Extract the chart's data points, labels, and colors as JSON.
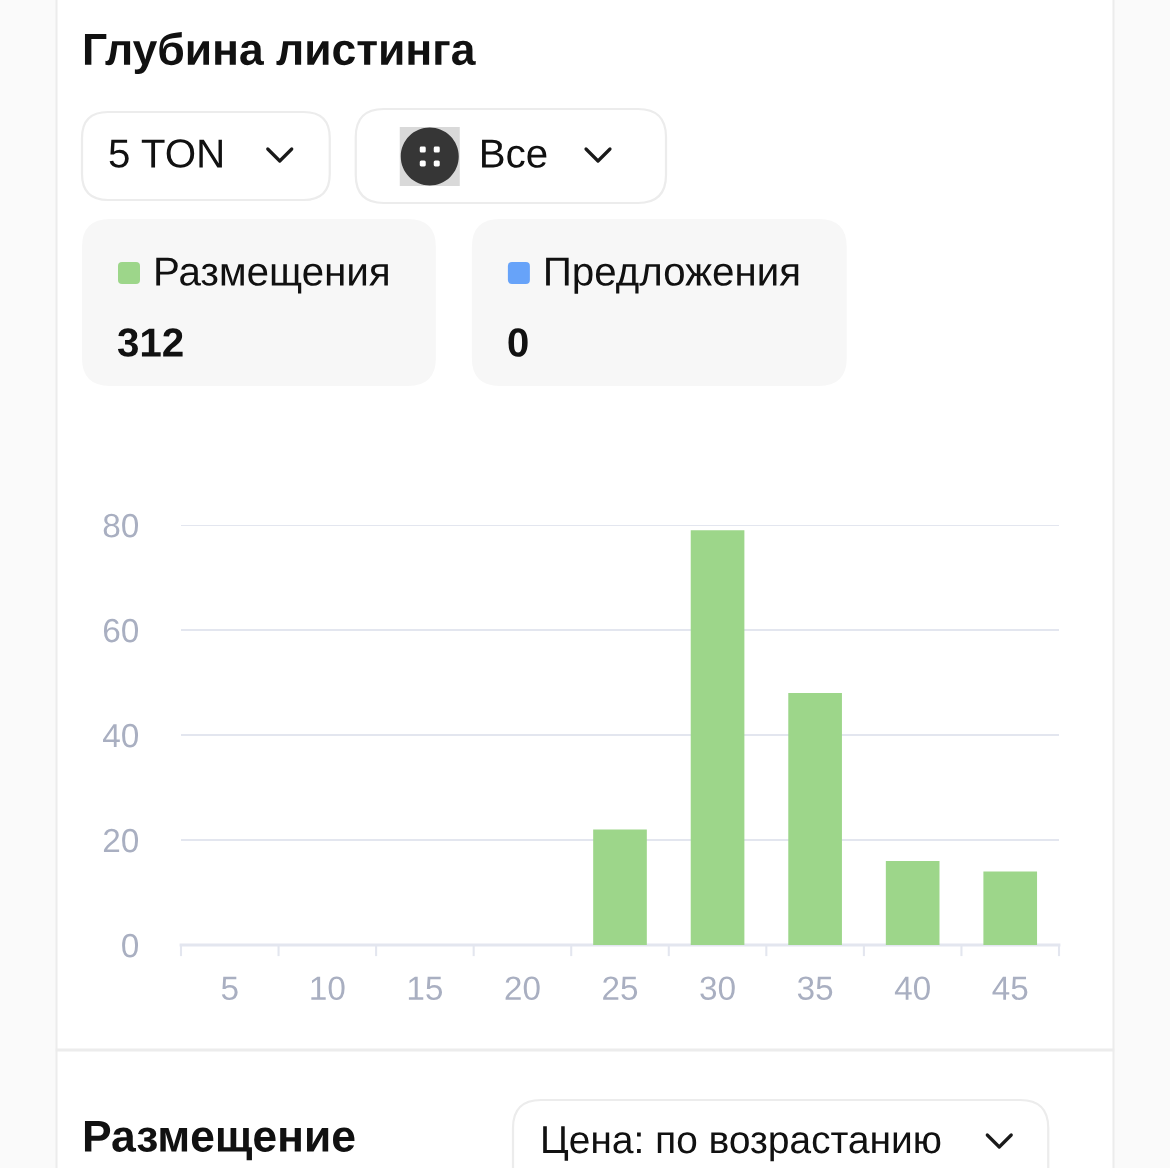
{
  "chart_data": {
    "type": "bar",
    "title": "Глубина листинга",
    "annotations": [
      "5 TON",
      "Все",
      "312",
      "0",
      "Размещение",
      "Цена: по возрастанию"
    ],
    "categories": [
      "5",
      "10",
      "15",
      "20",
      "25",
      "30",
      "35",
      "40",
      "45"
    ],
    "series": [
      {
        "name": "Размещения",
        "color": "#9dd68a",
        "values": [
          0,
          0,
          0,
          0,
          22,
          79,
          48,
          16,
          14
        ]
      },
      {
        "name": "Предложения",
        "color": "#67a3f9",
        "values": [
          0,
          0,
          0,
          0,
          0,
          0,
          0,
          0,
          0
        ]
      }
    ],
    "stacked": true,
    "ylim": [
      0,
      80
    ],
    "yticks": [
      0,
      20,
      40,
      60,
      80
    ],
    "grid": "y",
    "legend": "top left"
  }
}
